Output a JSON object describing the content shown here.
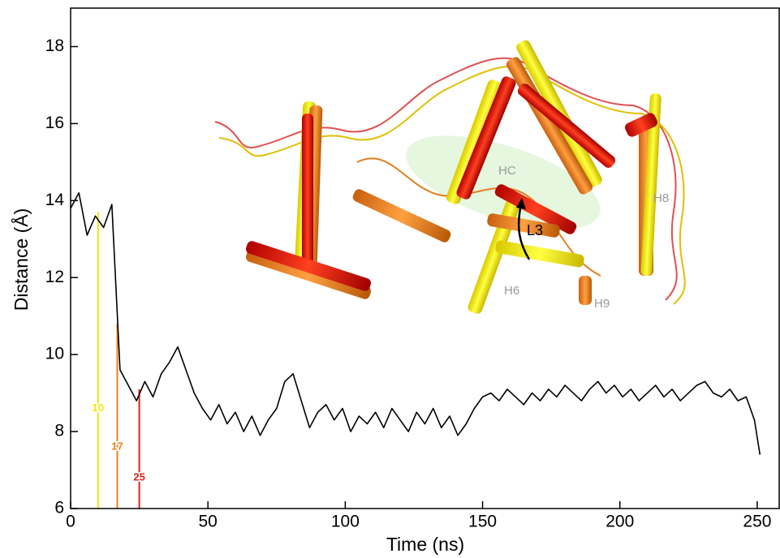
{
  "chart_data": {
    "type": "line",
    "x_label": "Time (ns)",
    "y_label": "Distance (Å)",
    "xlim": [
      0,
      258
    ],
    "ylim": [
      6,
      19
    ],
    "xticks": [
      0,
      50,
      100,
      150,
      200,
      250
    ],
    "yticks": [
      6,
      8,
      10,
      12,
      14,
      16,
      18
    ],
    "series": [
      {
        "color": "#000000",
        "x": [
          0,
          3,
          6,
          9,
          12,
          15,
          18,
          21,
          24,
          27,
          30,
          33,
          36,
          39,
          42,
          45,
          48,
          51,
          54,
          57,
          60,
          63,
          66,
          69,
          72,
          75,
          78,
          81,
          84,
          87,
          90,
          93,
          96,
          99,
          102,
          105,
          108,
          111,
          114,
          117,
          120,
          123,
          126,
          129,
          132,
          135,
          138,
          141,
          144,
          147,
          150,
          153,
          156,
          159,
          162,
          165,
          168,
          171,
          174,
          177,
          180,
          183,
          186,
          189,
          192,
          195,
          198,
          201,
          204,
          207,
          210,
          213,
          216,
          219,
          222,
          225,
          228,
          231,
          234,
          237,
          240,
          243,
          246,
          249,
          251
        ],
        "values": [
          13.8,
          14.2,
          13.1,
          13.6,
          13.3,
          13.9,
          9.6,
          9.2,
          8.8,
          9.3,
          8.9,
          9.5,
          9.8,
          10.2,
          9.6,
          9.0,
          8.6,
          8.3,
          8.7,
          8.2,
          8.5,
          8.0,
          8.4,
          7.9,
          8.3,
          8.6,
          9.3,
          9.5,
          8.8,
          8.1,
          8.5,
          8.7,
          8.3,
          8.6,
          8.0,
          8.4,
          8.2,
          8.5,
          8.1,
          8.6,
          8.3,
          8.0,
          8.5,
          8.2,
          8.6,
          8.1,
          8.4,
          7.9,
          8.2,
          8.6,
          8.9,
          9.0,
          8.8,
          9.1,
          8.9,
          8.7,
          9.0,
          8.8,
          9.1,
          8.9,
          9.2,
          9.0,
          8.8,
          9.1,
          9.3,
          9.0,
          9.2,
          8.9,
          9.1,
          8.8,
          9.0,
          9.2,
          8.9,
          9.1,
          8.8,
          9.0,
          9.2,
          9.3,
          9.0,
          8.9,
          9.1,
          8.8,
          8.9,
          8.3,
          7.4
        ]
      }
    ],
    "markers": [
      {
        "x": 10,
        "top": 13.7,
        "label_at": 8.6,
        "color": "#f2e600"
      },
      {
        "x": 17,
        "top": 10.8,
        "label_at": 7.6,
        "color": "#f07e1e"
      },
      {
        "x": 25,
        "top": 9.1,
        "label_at": 6.8,
        "color": "#e0201a"
      }
    ],
    "annotations": [
      "HC",
      "L3",
      "H6",
      "H8",
      "H9"
    ]
  }
}
